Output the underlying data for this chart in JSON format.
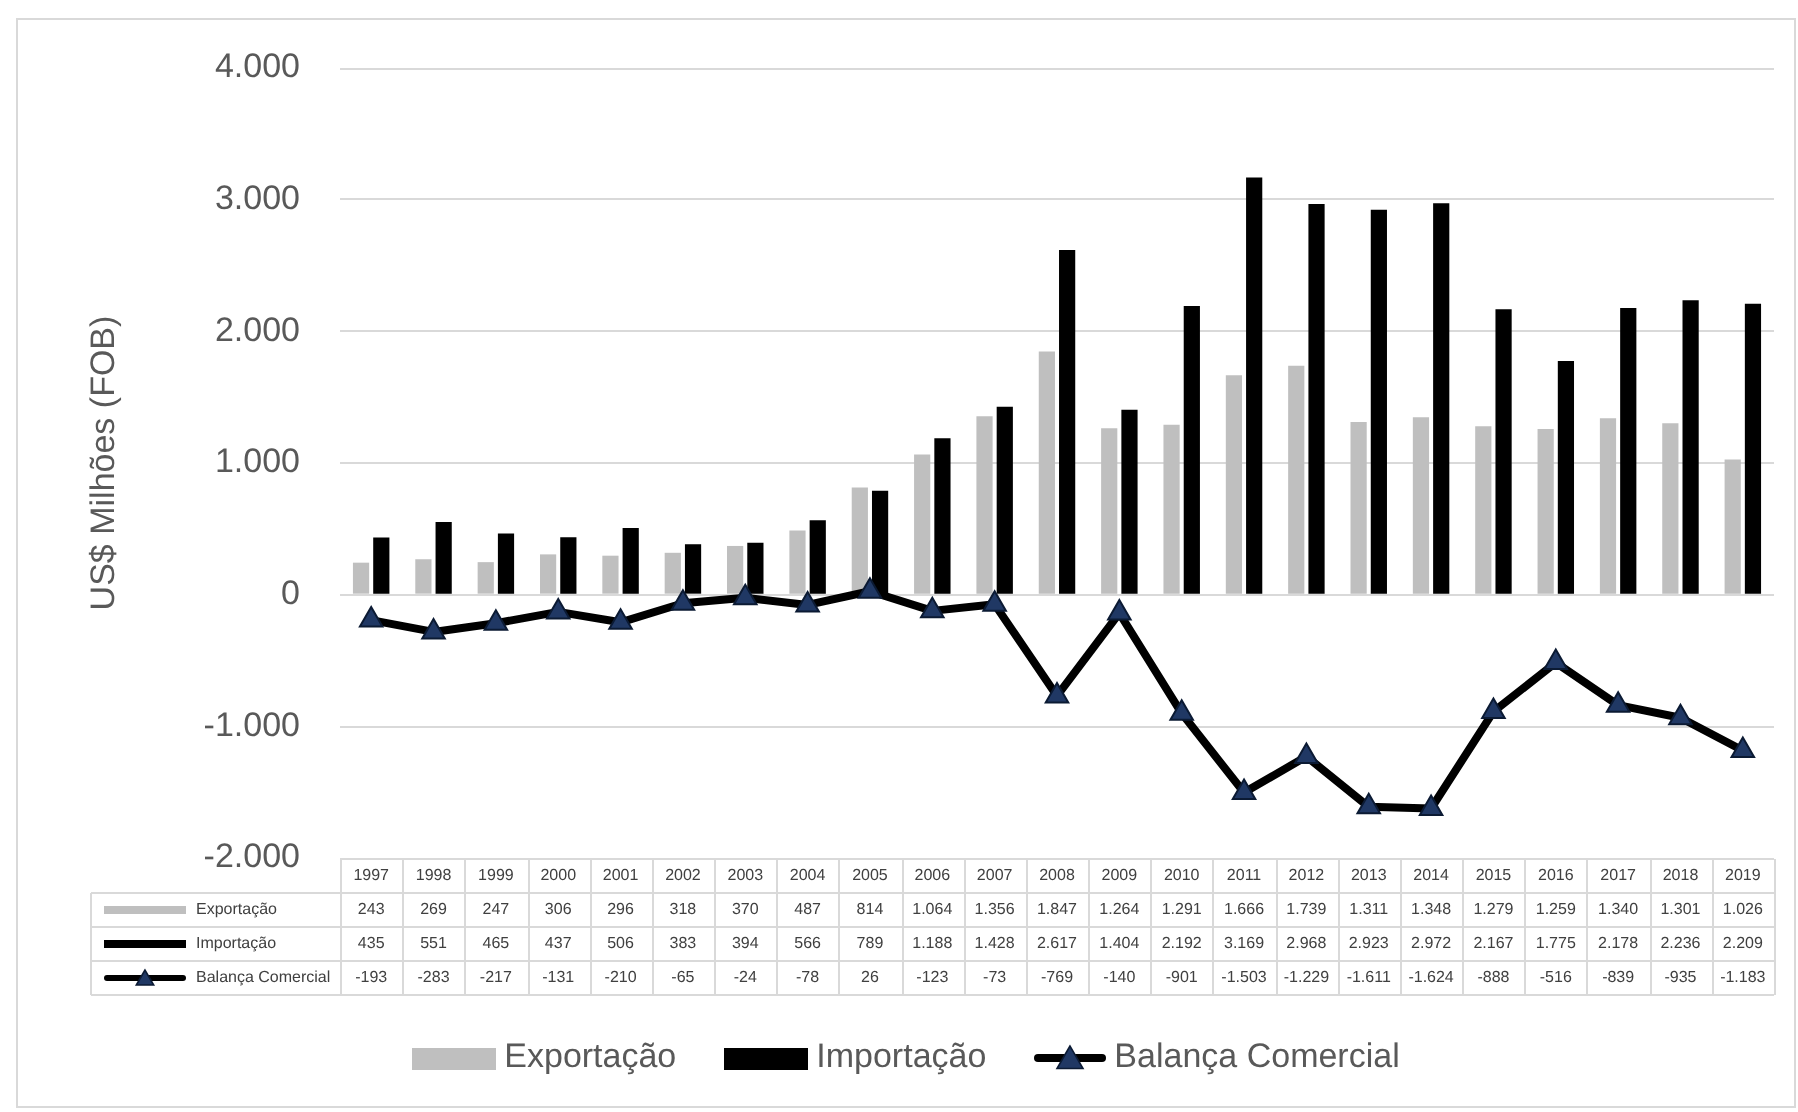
{
  "chart_data": {
    "type": "bar",
    "ylabel": "US$ Milhões (FOB)",
    "categories": [
      "1997",
      "1998",
      "1999",
      "2000",
      "2001",
      "2002",
      "2003",
      "2004",
      "2005",
      "2006",
      "2007",
      "2008",
      "2009",
      "2010",
      "2011",
      "2012",
      "2013",
      "2014",
      "2015",
      "2016",
      "2017",
      "2018",
      "2019"
    ],
    "series": [
      {
        "name": "Exportação",
        "color": "#bfbfbf",
        "values": [
          243,
          269,
          247,
          306,
          296,
          318,
          370,
          487,
          814,
          1064,
          1356,
          1847,
          1264,
          1291,
          1666,
          1739,
          1311,
          1348,
          1279,
          1259,
          1340,
          1301,
          1026
        ],
        "value_labels": [
          "243",
          "269",
          "247",
          "306",
          "296",
          "318",
          "370",
          "487",
          "814",
          "1.064",
          "1.356",
          "1.847",
          "1.264",
          "1.291",
          "1.666",
          "1.739",
          "1.311",
          "1.348",
          "1.279",
          "1.259",
          "1.340",
          "1.301",
          "1.026"
        ]
      },
      {
        "name": "Importação",
        "color": "#000000",
        "values": [
          435,
          551,
          465,
          437,
          506,
          383,
          394,
          566,
          789,
          1188,
          1428,
          2617,
          1404,
          2192,
          3169,
          2968,
          2923,
          2972,
          2167,
          1775,
          2178,
          2236,
          2209
        ],
        "value_labels": [
          "435",
          "551",
          "465",
          "437",
          "506",
          "383",
          "394",
          "566",
          "789",
          "1.188",
          "1.428",
          "2.617",
          "1.404",
          "2.192",
          "3.169",
          "2.968",
          "2.923",
          "2.972",
          "2.167",
          "1.775",
          "2.178",
          "2.236",
          "2.209"
        ]
      },
      {
        "name": "Balança Comercial",
        "type": "line",
        "color": "#000000",
        "values": [
          -193,
          -283,
          -217,
          -131,
          -210,
          -65,
          -24,
          -78,
          26,
          -123,
          -73,
          -769,
          -140,
          -901,
          -1503,
          -1229,
          -1611,
          -1624,
          -888,
          -516,
          -839,
          -935,
          -1183
        ],
        "value_labels": [
          "-193",
          "-283",
          "-217",
          "-131",
          "-210",
          "-65",
          "-24",
          "-78",
          "26",
          "-123",
          "-73",
          "-769",
          "-140",
          "-901",
          "-1.503",
          "-1.229",
          "-1.611",
          "-1.624",
          "-888",
          "-516",
          "-839",
          "-935",
          "-1.183"
        ]
      }
    ],
    "ylim": [
      -2000,
      4000
    ],
    "yticks": [
      {
        "value": -2000,
        "label": "-2.000"
      },
      {
        "value": -1000,
        "label": "-1.000"
      },
      0,
      {
        "value": 1000,
        "label": "1.000"
      },
      {
        "value": 2000,
        "label": "2.000"
      },
      {
        "value": 3000,
        "label": "3.000"
      },
      {
        "value": 4000,
        "label": "4.000"
      }
    ],
    "grid": "y",
    "legend": "bottom",
    "marker": "triangle"
  }
}
